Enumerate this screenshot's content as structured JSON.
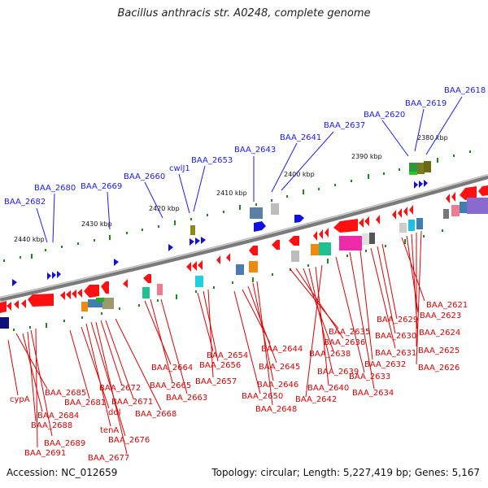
{
  "title": "Bacillus anthracis str. A0248, complete genome",
  "footer": {
    "accession": "Accession: NC_012659",
    "summary": "Topology: circular; Length: 5,227,419 bp; Genes: 5,167"
  },
  "ticks": [
    "2440 kbp",
    "2430 kbp",
    "2420 kbp",
    "2410 kbp",
    "2400 kbp",
    "2390 kbp",
    "2380 kbp"
  ],
  "blue_labels": [
    "BAA_2682",
    "BAA_2680",
    "BAA_2669",
    "BAA_2660",
    "cwlJ1",
    "BAA_2653",
    "BAA_2643",
    "BAA_2641",
    "BAA_2637",
    "BAA_2620",
    "BAA_2619",
    "BAA_2618"
  ],
  "red_labels": [
    "cypA",
    "BAA_2685",
    "BAA_2684",
    "BAA_2688",
    "BAA_2689",
    "BAA_2691",
    "BAA_2681",
    "ddl",
    "tenA",
    "BAA_2676",
    "BAA_2677",
    "BAA_2672",
    "BAA_2671",
    "BAA_2668",
    "BAA_2664",
    "BAA_2665",
    "BAA_2663",
    "BAA_2654",
    "BAA_2656",
    "BAA_2657",
    "BAA_2644",
    "BAA_2645",
    "BAA_2646",
    "BAA_2650",
    "BAA_2648",
    "BAA_2635",
    "BAA_2636",
    "BAA_2638",
    "BAA_2639",
    "BAA_2640",
    "BAA_2642",
    "BAA_2633",
    "BAA_2634",
    "BAA_2632",
    "BAA_2631",
    "BAA_2630",
    "BAA_2629",
    "BAA_2621",
    "BAA_2623",
    "BAA_2624",
    "BAA_2625",
    "BAA_2626"
  ],
  "colors": {
    "forward_gene": "#1010e0",
    "reverse_gene": "#ff1010",
    "backbone": "#888888",
    "tick": "#1a8a1a",
    "blue_label": "#1a1aff",
    "red_label": "#e00000"
  }
}
